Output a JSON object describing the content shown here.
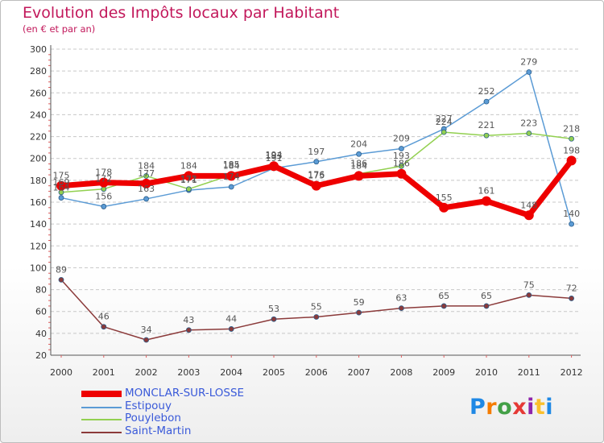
{
  "title": "Evolution des Impôts locaux par Habitant",
  "subtitle": "(en € et par an)",
  "logo": {
    "letters": [
      {
        "ch": "P",
        "color": "#1e88e5"
      },
      {
        "ch": "r",
        "color": "#f57c00"
      },
      {
        "ch": "o",
        "color": "#43a047"
      },
      {
        "ch": "x",
        "color": "#e53935"
      },
      {
        "ch": "i",
        "color": "#8e24aa"
      },
      {
        "ch": "t",
        "color": "#fbc02d"
      },
      {
        "ch": "i",
        "color": "#1e88e5"
      }
    ]
  },
  "chart_data": {
    "type": "line",
    "title": "Evolution des Impôts locaux par Habitant",
    "subtitle": "(en € et par an)",
    "x": [
      "2000",
      "2001",
      "2002",
      "2003",
      "2004",
      "2005",
      "2006",
      "2007",
      "2008",
      "2009",
      "2010",
      "2011",
      "2012"
    ],
    "yticks": [
      20,
      40,
      60,
      80,
      100,
      120,
      140,
      160,
      180,
      200,
      220,
      240,
      260,
      280,
      300
    ],
    "ylim": [
      20,
      300
    ],
    "grid": "horizontal dashed",
    "legend_position": "bottom-left",
    "series": [
      {
        "name": "Estipouy",
        "color": "#5b9bd5",
        "width": 1.5,
        "values": [
          164,
          156,
          163,
          171,
          174,
          191,
          197,
          204,
          209,
          227,
          252,
          279,
          140
        ],
        "labels": [
          "164",
          "156",
          "163",
          "171",
          "174",
          "191",
          "197",
          "204",
          "209",
          "227",
          "252",
          "279",
          "140"
        ]
      },
      {
        "name": "Pouylebon",
        "color": "#92d050",
        "width": 1.5,
        "values": [
          169,
          172,
          184,
          172,
          185,
          194,
          176,
          186,
          193,
          224,
          221,
          223,
          218
        ],
        "labels": [
          "169",
          "172",
          "184",
          "172",
          "185",
          "194",
          "176",
          "186",
          "193",
          "224",
          "221",
          "223",
          "218"
        ]
      },
      {
        "name": "Saint-Martin",
        "color": "#8b3a3a",
        "width": 1.5,
        "values": [
          89,
          46,
          34,
          43,
          44,
          53,
          55,
          59,
          63,
          65,
          65,
          75,
          72
        ],
        "labels": [
          "89",
          "46",
          "34",
          "43",
          "44",
          "53",
          "55",
          "59",
          "63",
          "65",
          "65",
          "75",
          "72"
        ]
      },
      {
        "name": "MONCLAR-SUR-LOSSE",
        "color": "#ee0000",
        "width": 7,
        "values": [
          175,
          178,
          177,
          184,
          184,
          193,
          175,
          184,
          186,
          155,
          161,
          148,
          198
        ],
        "labels": [
          "175",
          "178",
          "177",
          "184",
          "184",
          "193",
          "175",
          "184",
          "186",
          "155",
          "161",
          "148",
          "198"
        ]
      }
    ],
    "legend": [
      {
        "name": "MONCLAR-SUR-LOSSE",
        "color": "#ee0000",
        "thick": true
      },
      {
        "name": "Estipouy",
        "color": "#5b9bd5",
        "thick": false
      },
      {
        "name": "Pouylebon",
        "color": "#92d050",
        "thick": false
      },
      {
        "name": "Saint-Martin",
        "color": "#8b3a3a",
        "thick": false
      }
    ]
  }
}
